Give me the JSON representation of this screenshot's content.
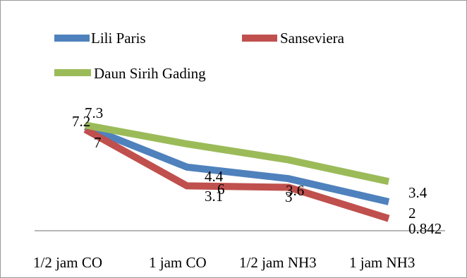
{
  "chart_data": {
    "type": "line",
    "categories": [
      "1/2 jam CO",
      "1 jam CO",
      "1/2 jam NH3",
      "1 jam NH3"
    ],
    "series": [
      {
        "name": "Lili Paris",
        "color": "#4F81BD",
        "values": [
          7.2,
          4.4,
          3.6,
          2
        ],
        "labels": [
          "7.2",
          "4.4",
          "3.6",
          "2"
        ]
      },
      {
        "name": "Sanseviera",
        "color": "#C0504D",
        "values": [
          7,
          3.1,
          3,
          0.842
        ],
        "labels": [
          "7",
          "3.1",
          "3",
          "0.842"
        ]
      },
      {
        "name": "Daun Sirih Gading",
        "color": "#9BBB59",
        "values": [
          7.3,
          6,
          4.9,
          3.4
        ],
        "labels": [
          "7.3",
          "6",
          "",
          "3.4"
        ]
      }
    ],
    "legend_position": "top",
    "grid": false,
    "ylim": [
      0,
      12
    ]
  }
}
